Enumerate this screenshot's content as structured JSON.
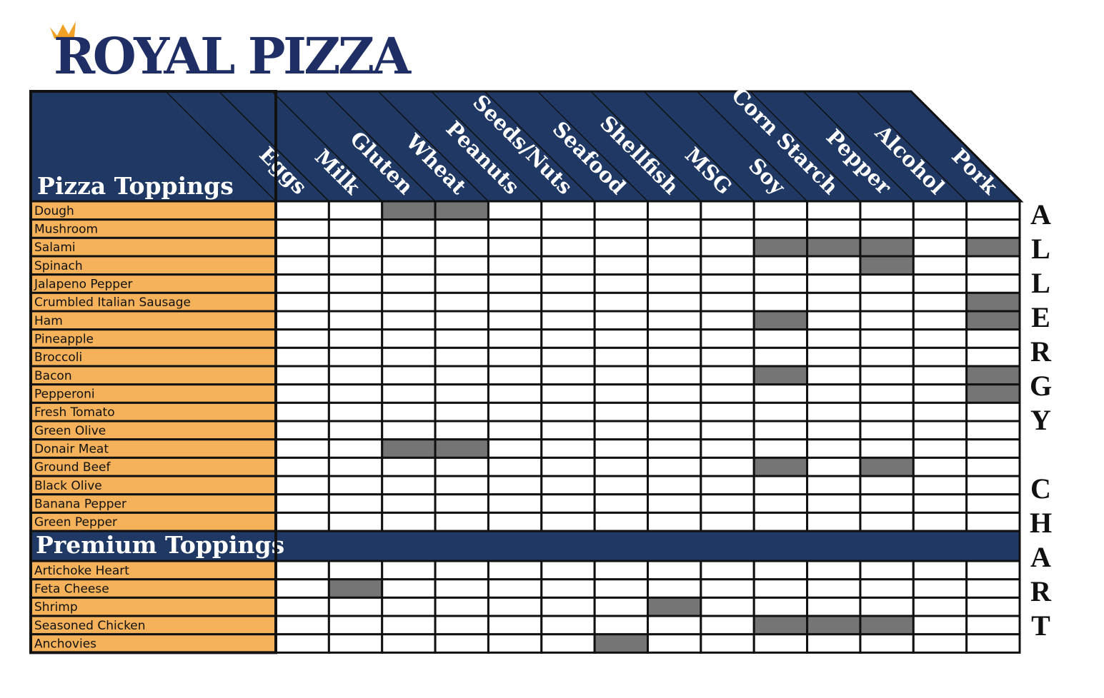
{
  "logo": "ROYAL PIZZA",
  "side_label": "ALLERGY CHART",
  "columns": [
    "Eggs",
    "Milk",
    "Gluten",
    "Wheat",
    "Peanuts",
    "Seeds/Nuts",
    "Seafood",
    "Shellfish",
    "MSG",
    "Soy",
    "Corn Starch",
    "Pepper",
    "Alcohol",
    "Pork"
  ],
  "sections": [
    {
      "title": "Pizza Toppings",
      "rows": [
        {
          "name": "Dough",
          "flags": [
            false,
            false,
            true,
            true,
            false,
            false,
            false,
            false,
            false,
            false,
            false,
            false,
            false,
            false
          ]
        },
        {
          "name": "Mushroom",
          "flags": [
            false,
            false,
            false,
            false,
            false,
            false,
            false,
            false,
            false,
            false,
            false,
            false,
            false,
            false
          ]
        },
        {
          "name": "Salami",
          "flags": [
            false,
            false,
            false,
            false,
            false,
            false,
            false,
            false,
            false,
            true,
            true,
            true,
            false,
            true
          ]
        },
        {
          "name": "Spinach",
          "flags": [
            false,
            false,
            false,
            false,
            false,
            false,
            false,
            false,
            false,
            false,
            false,
            true,
            false,
            false
          ]
        },
        {
          "name": "Jalapeno Pepper",
          "flags": [
            false,
            false,
            false,
            false,
            false,
            false,
            false,
            false,
            false,
            false,
            false,
            false,
            false,
            false
          ]
        },
        {
          "name": "Crumbled Italian Sausage",
          "flags": [
            false,
            false,
            false,
            false,
            false,
            false,
            false,
            false,
            false,
            false,
            false,
            false,
            false,
            true
          ]
        },
        {
          "name": "Ham",
          "flags": [
            false,
            false,
            false,
            false,
            false,
            false,
            false,
            false,
            false,
            true,
            false,
            false,
            false,
            true
          ]
        },
        {
          "name": "Pineapple",
          "flags": [
            false,
            false,
            false,
            false,
            false,
            false,
            false,
            false,
            false,
            false,
            false,
            false,
            false,
            false
          ]
        },
        {
          "name": "Broccoli",
          "flags": [
            false,
            false,
            false,
            false,
            false,
            false,
            false,
            false,
            false,
            false,
            false,
            false,
            false,
            false
          ]
        },
        {
          "name": "Bacon",
          "flags": [
            false,
            false,
            false,
            false,
            false,
            false,
            false,
            false,
            false,
            true,
            false,
            false,
            false,
            true
          ]
        },
        {
          "name": "Pepperoni",
          "flags": [
            false,
            false,
            false,
            false,
            false,
            false,
            false,
            false,
            false,
            false,
            false,
            false,
            false,
            true
          ]
        },
        {
          "name": "Fresh Tomato",
          "flags": [
            false,
            false,
            false,
            false,
            false,
            false,
            false,
            false,
            false,
            false,
            false,
            false,
            false,
            false
          ]
        },
        {
          "name": "Green Olive",
          "flags": [
            false,
            false,
            false,
            false,
            false,
            false,
            false,
            false,
            false,
            false,
            false,
            false,
            false,
            false
          ]
        },
        {
          "name": "Donair Meat",
          "flags": [
            false,
            false,
            true,
            true,
            false,
            false,
            false,
            false,
            false,
            false,
            false,
            false,
            false,
            false
          ]
        },
        {
          "name": "Ground Beef",
          "flags": [
            false,
            false,
            false,
            false,
            false,
            false,
            false,
            false,
            false,
            true,
            false,
            true,
            false,
            false
          ]
        },
        {
          "name": "Black Olive",
          "flags": [
            false,
            false,
            false,
            false,
            false,
            false,
            false,
            false,
            false,
            false,
            false,
            false,
            false,
            false
          ]
        },
        {
          "name": "Banana Pepper",
          "flags": [
            false,
            false,
            false,
            false,
            false,
            false,
            false,
            false,
            false,
            false,
            false,
            false,
            false,
            false
          ]
        },
        {
          "name": "Green Pepper",
          "flags": [
            false,
            false,
            false,
            false,
            false,
            false,
            false,
            false,
            false,
            false,
            false,
            false,
            false,
            false
          ]
        }
      ]
    },
    {
      "title": "Premium Toppings",
      "rows": [
        {
          "name": "Artichoke Heart",
          "flags": [
            false,
            false,
            false,
            false,
            false,
            false,
            false,
            false,
            false,
            false,
            false,
            false,
            false,
            false
          ]
        },
        {
          "name": "Feta Cheese",
          "flags": [
            false,
            true,
            false,
            false,
            false,
            false,
            false,
            false,
            false,
            false,
            false,
            false,
            false,
            false
          ]
        },
        {
          "name": "Shrimp",
          "flags": [
            false,
            false,
            false,
            false,
            false,
            false,
            false,
            true,
            false,
            false,
            false,
            false,
            false,
            false
          ]
        },
        {
          "name": "Seasoned Chicken",
          "flags": [
            false,
            false,
            false,
            false,
            false,
            false,
            false,
            false,
            false,
            true,
            true,
            true,
            false,
            false
          ]
        },
        {
          "name": "Anchovies",
          "flags": [
            false,
            false,
            false,
            false,
            false,
            false,
            true,
            false,
            false,
            false,
            false,
            false,
            false,
            false
          ]
        }
      ]
    }
  ]
}
